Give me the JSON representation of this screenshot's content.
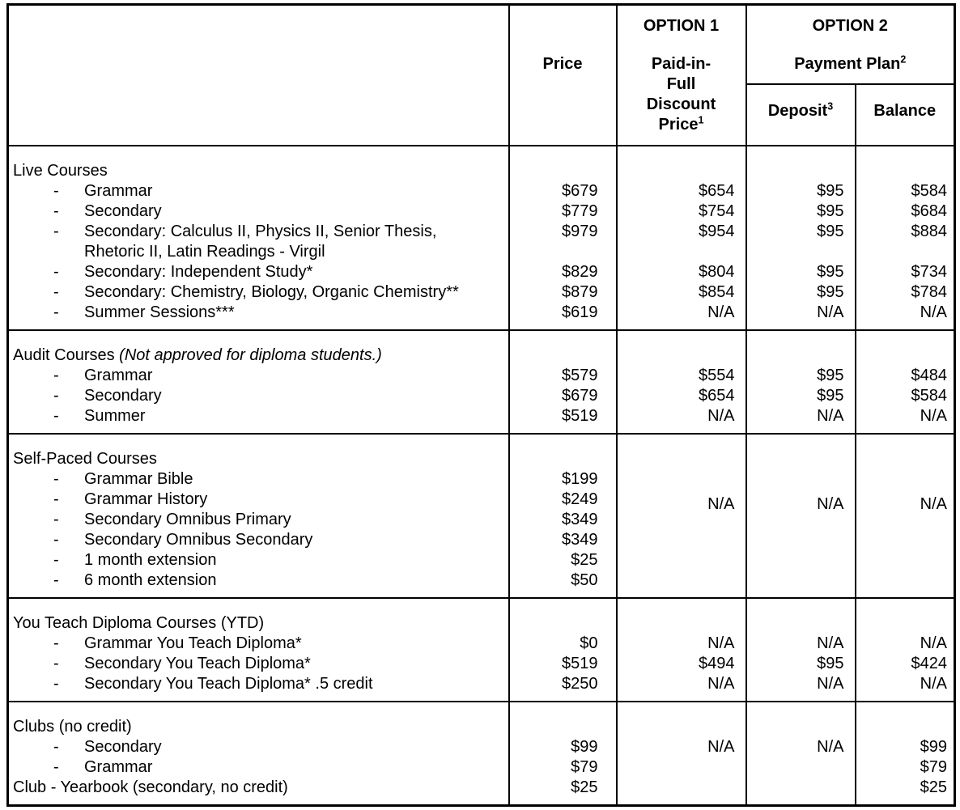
{
  "document": {
    "bullet": "-",
    "header": {
      "price_label": "Price",
      "option1": {
        "title": "OPTION 1",
        "subtitle": "Paid-in-\nFull\nDiscount\nPrice",
        "footnote": "1"
      },
      "option2": {
        "title": "OPTION 2",
        "subtitle": "Payment Plan",
        "footnote": "2"
      },
      "deposit": {
        "label": "Deposit",
        "footnote": "3"
      },
      "balance": {
        "label": "Balance"
      }
    },
    "columns": [
      "price",
      "option1",
      "deposit",
      "balance"
    ],
    "sections": [
      {
        "heading": "Live Courses",
        "heading_note": null,
        "rows": [
          {
            "kind": "item",
            "label": "Grammar",
            "values": [
              "$679",
              "$654",
              "$95",
              "$584"
            ]
          },
          {
            "kind": "item",
            "label": "Secondary",
            "values": [
              "$779",
              "$754",
              "$95",
              "$684"
            ]
          },
          {
            "kind": "item",
            "label": "Secondary: Calculus II, Physics II, Senior Thesis,",
            "values": [
              "$979",
              "$954",
              "$95",
              "$884"
            ]
          },
          {
            "kind": "wrap",
            "label": "Rhetoric II, Latin Readings - Virgil",
            "values": [
              "",
              "",
              "",
              ""
            ]
          },
          {
            "kind": "item",
            "label": "Secondary: Independent Study*",
            "values": [
              "$829",
              "$804",
              "$95",
              "$734"
            ]
          },
          {
            "kind": "item",
            "label": "Secondary: Chemistry, Biology, Organic Chemistry**",
            "values": [
              "$879",
              "$854",
              "$95",
              "$784"
            ]
          },
          {
            "kind": "item",
            "label": "Summer Sessions***",
            "values": [
              "$619",
              "N/A",
              "N/A",
              "N/A"
            ]
          }
        ]
      },
      {
        "heading": "Audit Courses ",
        "heading_note": "(Not approved for diploma students.)",
        "rows": [
          {
            "kind": "item",
            "label": "Grammar",
            "values": [
              "$579",
              "$554",
              "$95",
              "$484"
            ]
          },
          {
            "kind": "item",
            "label": "Secondary",
            "values": [
              "$679",
              "$654",
              "$95",
              "$584"
            ]
          },
          {
            "kind": "item",
            "label": "Summer",
            "values": [
              "$519",
              "N/A",
              "N/A",
              "N/A"
            ]
          }
        ]
      },
      {
        "heading": "Self-Paced Courses",
        "heading_note": null,
        "merged": {
          "option1": "N/A",
          "deposit": "N/A",
          "balance": "N/A"
        },
        "rows": [
          {
            "kind": "item",
            "label": "Grammar Bible",
            "values": [
              "$199"
            ]
          },
          {
            "kind": "item",
            "label": "Grammar History",
            "values": [
              "$249"
            ]
          },
          {
            "kind": "item",
            "label": "Secondary Omnibus Primary",
            "values": [
              "$349"
            ]
          },
          {
            "kind": "item",
            "label": "Secondary Omnibus Secondary",
            "values": [
              "$349"
            ]
          },
          {
            "kind": "item",
            "label": "1 month extension",
            "values": [
              "$25"
            ]
          },
          {
            "kind": "item",
            "label": "6 month extension",
            "values": [
              "$50"
            ]
          }
        ]
      },
      {
        "heading": "You Teach Diploma Courses (YTD)",
        "heading_note": null,
        "rows": [
          {
            "kind": "item",
            "label": "Grammar You Teach Diploma*",
            "values": [
              "$0",
              "N/A",
              "N/A",
              "N/A"
            ]
          },
          {
            "kind": "item",
            "label": "Secondary You Teach Diploma*",
            "values": [
              "$519",
              "$494",
              "$95",
              "$424"
            ]
          },
          {
            "kind": "item",
            "label": "Secondary You Teach Diploma* .5 credit",
            "values": [
              "$250",
              "N/A",
              "N/A",
              "N/A"
            ]
          }
        ]
      },
      {
        "heading": "Clubs (no credit)",
        "heading_note": null,
        "rows": [
          {
            "kind": "item",
            "label": "Secondary",
            "values": [
              "$99",
              "N/A",
              "N/A",
              "$99"
            ]
          },
          {
            "kind": "item",
            "label": "Grammar",
            "values": [
              "$79",
              "",
              "",
              "$79"
            ]
          },
          {
            "kind": "footer",
            "label": "Club - Yearbook (secondary, no credit)",
            "values": [
              "$25",
              "",
              "",
              "$25"
            ]
          }
        ]
      }
    ]
  }
}
